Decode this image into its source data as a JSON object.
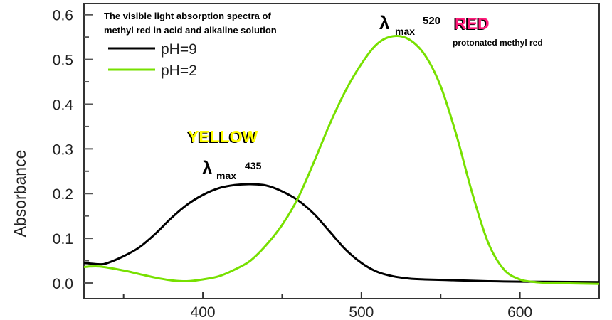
{
  "chart_data": {
    "type": "line",
    "title": "The visible light absorption spectra of methyl red in acid and alkaline solution",
    "title_lines": [
      "The visible light absorption spectra of",
      "methyl red in acid and alkaline solution"
    ],
    "xlabel": "",
    "ylabel": "Absorbance",
    "xlim": [
      325,
      650
    ],
    "ylim": [
      -0.035,
      0.625
    ],
    "x_ticks": [
      400,
      500,
      600
    ],
    "x_tick_labels": [
      "400",
      "500",
      "600"
    ],
    "x_minor_ticks": [
      350,
      450,
      550
    ],
    "y_ticks": [
      0.0,
      0.1,
      0.2,
      0.3,
      0.4,
      0.5,
      0.6
    ],
    "y_tick_labels": [
      "0.0",
      "0.1",
      "0.2",
      "0.3",
      "0.4",
      "0.5",
      "0.6"
    ],
    "grid": false,
    "legend_position": "top-left",
    "series": [
      {
        "name": "pH=9",
        "color": "#000000",
        "x": [
          325,
          335,
          340,
          350,
          360,
          370,
          380,
          390,
          400,
          410,
          420,
          430,
          440,
          450,
          460,
          470,
          480,
          490,
          500,
          510,
          520,
          530,
          540,
          560,
          580,
          600,
          650
        ],
        "y": [
          0.045,
          0.042,
          0.045,
          0.06,
          0.08,
          0.11,
          0.145,
          0.175,
          0.197,
          0.212,
          0.219,
          0.221,
          0.218,
          0.205,
          0.185,
          0.155,
          0.115,
          0.075,
          0.045,
          0.025,
          0.015,
          0.01,
          0.008,
          0.006,
          0.004,
          0.003,
          0.002
        ]
      },
      {
        "name": "pH=2",
        "color": "#77e000",
        "x": [
          325,
          335,
          350,
          360,
          370,
          380,
          390,
          400,
          410,
          420,
          430,
          440,
          450,
          460,
          470,
          480,
          490,
          500,
          510,
          520,
          530,
          540,
          550,
          560,
          570,
          580,
          590,
          600,
          610,
          620,
          650
        ],
        "y": [
          0.036,
          0.037,
          0.028,
          0.02,
          0.012,
          0.006,
          0.004,
          0.008,
          0.015,
          0.03,
          0.05,
          0.085,
          0.13,
          0.19,
          0.27,
          0.355,
          0.43,
          0.49,
          0.535,
          0.552,
          0.545,
          0.51,
          0.44,
          0.33,
          0.2,
          0.09,
          0.03,
          0.008,
          0.002,
          0.0,
          -0.002
        ]
      }
    ],
    "annotations": {
      "yellow_label": "YELLOW",
      "yellow_color": "#ffff00",
      "lambda_435": {
        "symbol": "λ",
        "sub": "max",
        "value": "435"
      },
      "lambda_520": {
        "symbol": "λ",
        "sub": "max",
        "value": "520"
      },
      "red_label": "RED",
      "red_color": "#ff1a7a",
      "red_note": "protonated methyl red"
    }
  }
}
